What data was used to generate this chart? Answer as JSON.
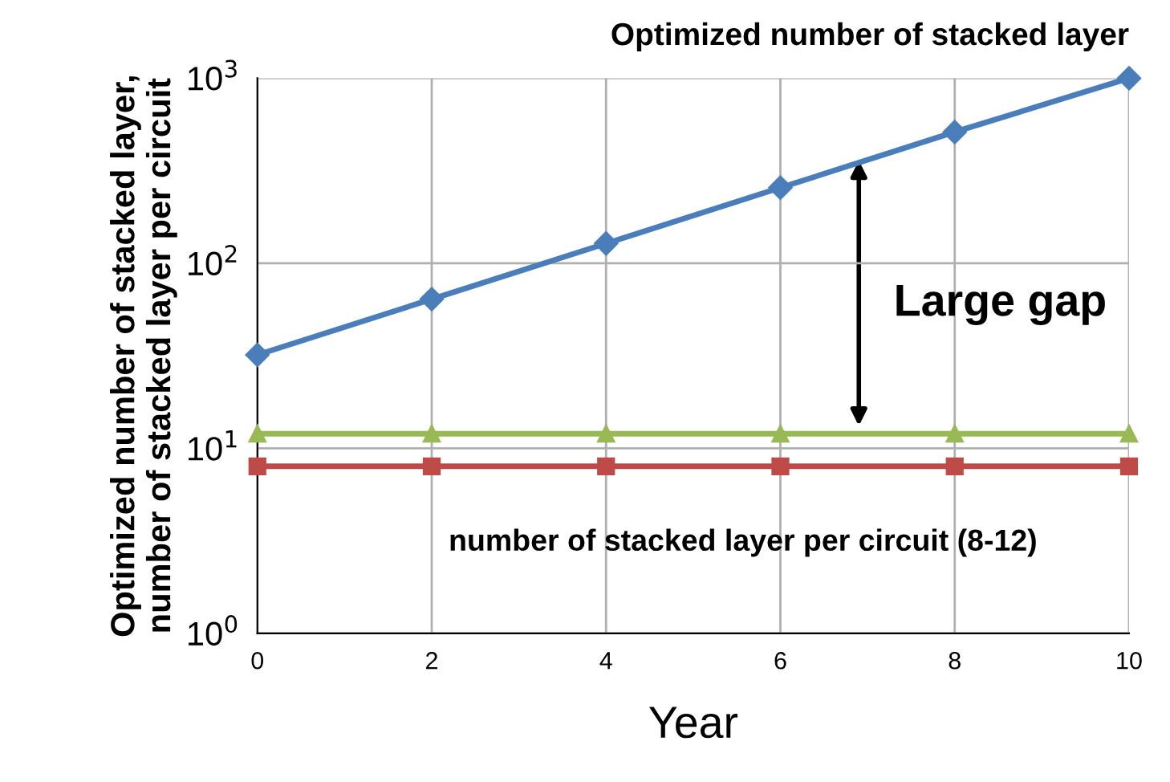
{
  "chart_data": {
    "type": "line",
    "x": [
      0,
      2,
      4,
      6,
      8,
      10
    ],
    "series": [
      {
        "color": "#4a7ebb",
        "values": [
          32,
          64,
          128,
          256,
          512,
          1000
        ],
        "marker": "diamond"
      },
      {
        "color": "#98b954",
        "values": [
          12,
          12,
          12,
          12,
          12,
          12
        ],
        "marker": "triangle"
      },
      {
        "color": "#be4b48",
        "values": [
          8,
          8,
          8,
          8,
          8,
          8
        ],
        "marker": "square"
      }
    ],
    "xlabel": "Year",
    "ylabel": "Optimized number of stacked layer,\nnumber of stacked layer per circuit",
    "log": "y",
    "xlim": [
      0,
      10
    ],
    "xticks": [
      0,
      2,
      4,
      6,
      8,
      10
    ],
    "ylim": [
      1,
      1000
    ],
    "yticks": [
      {
        "value": 1,
        "label": "10$^{0}$"
      },
      {
        "value": 10,
        "label": "10$^{1}$"
      },
      {
        "value": 100,
        "label": "10$^{2}$"
      },
      {
        "value": 1000,
        "label": "10$^{3}$"
      }
    ],
    "grid": true,
    "annotations": [
      {
        "text": "Optimized number of stacked layer",
        "x": 10,
        "y": 1000
      },
      {
        "text": "Large gap"
      },
      {
        "text": "number of stacked layer per circuit (8-12)",
        "x": 8,
        "y": 8
      }
    ]
  }
}
